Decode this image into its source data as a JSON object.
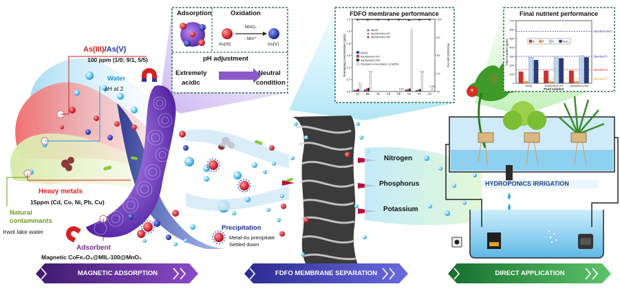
{
  "labels": {
    "as_title_as3": "As(III)",
    "as_title_sep": "/",
    "as_title_as5": "As(V)",
    "as_conc": "100 ppm (1/0; 9/1, 5/5)",
    "water": "Water",
    "ph2": "pH at 2",
    "heavy_metals": "Heavy metals",
    "hm_conc": "15ppm (Cd, Co, Ni, Pb, Cu)",
    "natural": "Natural",
    "contaminants": "contaminants",
    "lake": "Irwol lake water",
    "adsorbent": "Adsorbent",
    "adsorbent_formula": "Magnetic CoFe₂O₄@MIL-100@MnO₂",
    "precipitation": "Precipitation",
    "precip_1": "Metal-As precipitate",
    "precip_2": "Settled down",
    "nitrogen": "Nitrogen",
    "phosphorus": "Phosphorus",
    "potassium": "Potassium",
    "hydroponics": "HYDROPONICS IRRIGATION"
  },
  "inset_box": {
    "adsorption": "Adsorption",
    "oxidation": "Oxidation",
    "mno2": "MnO₂",
    "mn2": "- Mn²⁺",
    "as3": "As(III)",
    "as5": "As(V)",
    "ph_adjust": "pH adjustment",
    "extremely": "Extremely",
    "acidic": "acidic",
    "neutral": "Neutral",
    "condition": "condition"
  },
  "banners": {
    "magnetic": "MAGNETIC ADSORPTION",
    "fdfo": "FDFO MEMBRANE SEPARATION",
    "direct": "DIRECT APPLICATION"
  },
  "colors": {
    "banner_left": "#5a2a8a",
    "banner_mid": "#3a3aa8",
    "banner_right": "#1f8a3f",
    "as3_red": "#c81e1e",
    "as5_blue": "#2233aa",
    "water_blue": "#1a9ad6",
    "heavy_red": "#e0201c",
    "natural_green": "#6a9a1a",
    "adsorbent_purple": "#7a2a9a",
    "mof_purple": "#7b3fc4"
  },
  "chart_data": [
    {
      "type": "bar",
      "title": "FDFO membrane performance",
      "ylabel": "Remaining concentration (ppm)",
      "y2label": "Removal rate (%)",
      "categories": [
        "As",
        "Mn",
        "Ni",
        "Cd",
        "Pb",
        "Cu",
        "Fe",
        "Co"
      ],
      "ylim": [
        0,
        1.2
      ],
      "y2lim": [
        60,
        100
      ],
      "yticks": [
        "0.0",
        "0.2",
        "0.4",
        "0.6",
        "0.8",
        "1.0",
        "1.2"
      ],
      "y2ticks": [
        "60",
        "70",
        "80",
        "90",
        "100"
      ],
      "series": [
        {
          "name": "As(III)",
          "values": [
            0.02,
            0.03,
            0.0,
            0.0,
            0.0,
            0.03,
            0.02,
            0.0
          ]
        },
        {
          "name": "As(III)/As(V)=9/1",
          "values": [
            0.03,
            0.05,
            0.0,
            0.0,
            0.0,
            0.04,
            0.03,
            0.0
          ]
        },
        {
          "name": "As(III)/As(V)=5/5",
          "values": [
            0.04,
            0.06,
            0.0,
            0.0,
            0.0,
            0.05,
            0.04,
            0.0
          ]
        },
        {
          "name": "Standard concentration (USEPA)",
          "values": [
            0.1,
            0.3,
            0.0,
            0.0,
            0.01,
            1.0,
            0.3,
            0.05
          ]
        }
      ],
      "value_labels": [
        "0.1",
        "0.3",
        "",
        "",
        "0.01",
        "1",
        "0.3",
        "0.05"
      ],
      "removal": [
        99.8,
        99.7,
        99.8,
        99.7,
        99.8,
        99.6,
        99.7,
        99.8
      ],
      "legend_top": [
        "As(III)",
        "As(III)/As(V)=9/1",
        "As(III)/As(V)=5/5"
      ],
      "legend_bottom": [
        "As(III)",
        "As(III)/As(V)=9/1",
        "As(III)/As(V)=5/5",
        "Standard concentration (USEPA)"
      ]
    },
    {
      "type": "bar",
      "title": "Final nutrient performance",
      "xlabel": "Feed solution",
      "ylabel": "Final nutrient (ppm)",
      "categories": [
        "As(III)",
        "As(III)/As(V)=9/1",
        "As(III)/As(V)=5/5"
      ],
      "ylim": [
        0,
        700
      ],
      "yticks": [
        "0",
        "100",
        "200",
        "300",
        "400",
        "500",
        "600",
        "700"
      ],
      "series": [
        {
          "name": "N",
          "values": [
            130,
            140,
            140
          ]
        },
        {
          "name": "P",
          "values": [
            20,
            20,
            20
          ]
        },
        {
          "name": "K",
          "values": [
            290,
            300,
            310
          ]
        },
        {
          "name": "NaCl",
          "values": [
            260,
            280,
            290
          ]
        }
      ],
      "standards": [
        {
          "name": "Standard NaCl",
          "value": 580
        },
        {
          "name": "Standard K",
          "value": 300
        },
        {
          "name": "Standard N",
          "value": 150
        },
        {
          "name": "Standard P",
          "value": 50
        }
      ]
    }
  ]
}
